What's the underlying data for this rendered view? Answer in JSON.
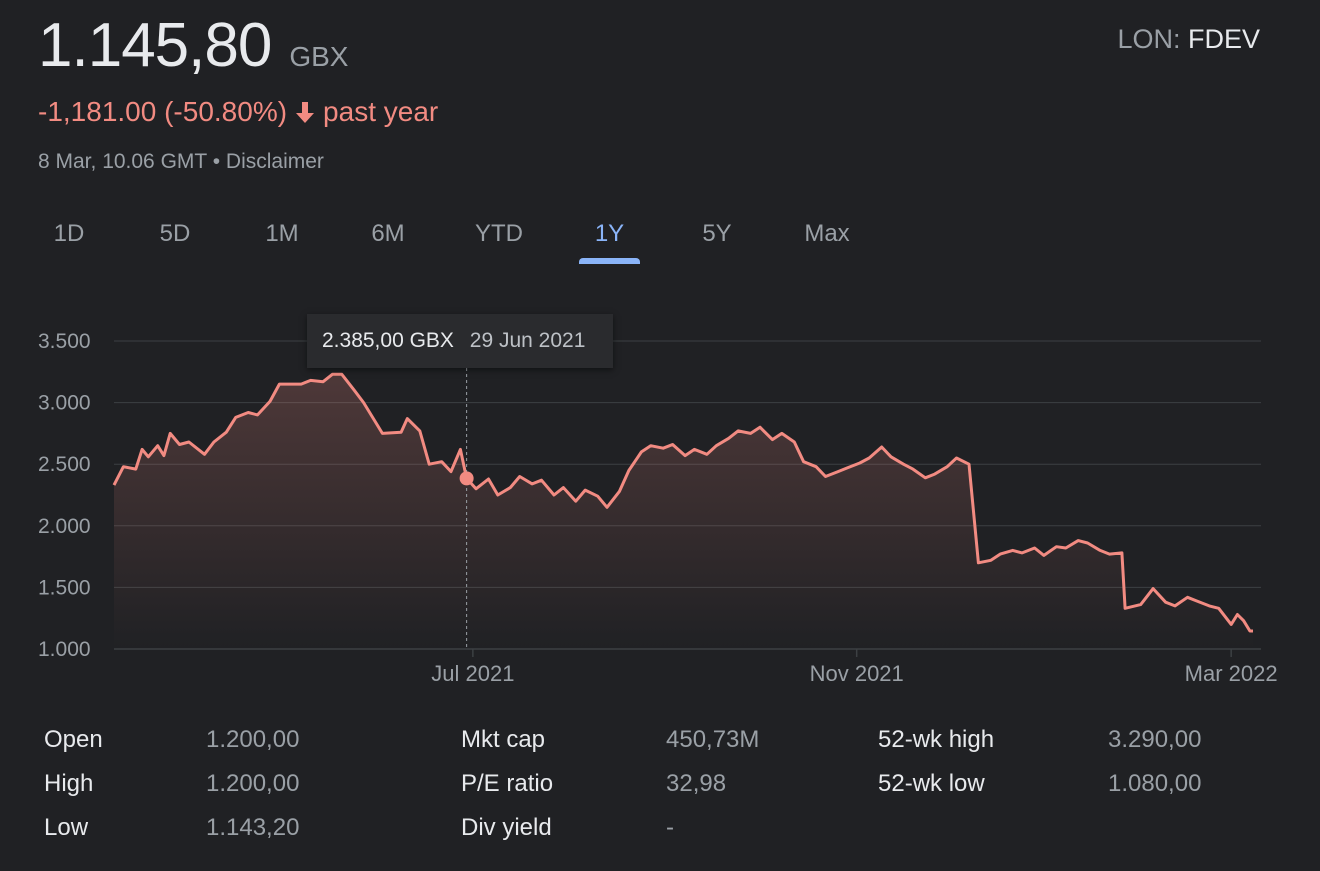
{
  "header": {
    "price": "1.145,80",
    "currency": "GBX",
    "exchange": "LON:",
    "symbol": "FDEV",
    "change": "-1,181.00 (-50.80%)",
    "period": "past year",
    "timestamp": "8 Mar, 10.06 GMT",
    "separator": "•",
    "disclaimer": "Disclaimer"
  },
  "colors": {
    "line": "#f28b82",
    "accent": "#8ab4f8",
    "grid": "#3c4043",
    "text_muted": "#9aa0a6"
  },
  "tabs": [
    {
      "label": "1D",
      "active": false
    },
    {
      "label": "5D",
      "active": false
    },
    {
      "label": "1M",
      "active": false
    },
    {
      "label": "6M",
      "active": false
    },
    {
      "label": "YTD",
      "active": false
    },
    {
      "label": "1Y",
      "active": true
    },
    {
      "label": "5Y",
      "active": false
    },
    {
      "label": "Max",
      "active": false
    }
  ],
  "tooltip": {
    "price": "2.385,00 GBX",
    "date": "29 Jun 2021"
  },
  "chart_data": {
    "type": "area",
    "x_range": [
      "2021-03-08",
      "2022-03-08"
    ],
    "ylim": [
      1000,
      3500
    ],
    "y_ticks": [
      {
        "value": 3500,
        "label": "3.500"
      },
      {
        "value": 3000,
        "label": "3.000"
      },
      {
        "value": 2500,
        "label": "2.500"
      },
      {
        "value": 2000,
        "label": "2.000"
      },
      {
        "value": 1500,
        "label": "1.500"
      },
      {
        "value": 1000,
        "label": "1.000"
      }
    ],
    "x_ticks": [
      {
        "date": "2021-07-01",
        "label": "Jul 2021"
      },
      {
        "date": "2021-11-01",
        "label": "Nov 2021"
      },
      {
        "date": "2022-03-01",
        "label": "Mar 2022"
      }
    ],
    "grid": true,
    "highlight": {
      "date": "2021-06-29",
      "value": 2385
    },
    "series": [
      {
        "points": [
          [
            "2021-03-08",
            2330
          ],
          [
            "2021-03-11",
            2480
          ],
          [
            "2021-03-15",
            2460
          ],
          [
            "2021-03-17",
            2620
          ],
          [
            "2021-03-19",
            2560
          ],
          [
            "2021-03-22",
            2650
          ],
          [
            "2021-03-24",
            2570
          ],
          [
            "2021-03-26",
            2750
          ],
          [
            "2021-03-29",
            2660
          ],
          [
            "2021-04-01",
            2680
          ],
          [
            "2021-04-06",
            2580
          ],
          [
            "2021-04-09",
            2680
          ],
          [
            "2021-04-13",
            2760
          ],
          [
            "2021-04-16",
            2880
          ],
          [
            "2021-04-20",
            2920
          ],
          [
            "2021-04-23",
            2900
          ],
          [
            "2021-04-27",
            3010
          ],
          [
            "2021-04-30",
            3150
          ],
          [
            "2021-05-07",
            3150
          ],
          [
            "2021-05-10",
            3180
          ],
          [
            "2021-05-14",
            3170
          ],
          [
            "2021-05-17",
            3230
          ],
          [
            "2021-05-20",
            3230
          ],
          [
            "2021-05-24",
            3100
          ],
          [
            "2021-05-27",
            3000
          ],
          [
            "2021-06-02",
            2750
          ],
          [
            "2021-06-08",
            2760
          ],
          [
            "2021-06-10",
            2870
          ],
          [
            "2021-06-14",
            2770
          ],
          [
            "2021-06-17",
            2500
          ],
          [
            "2021-06-21",
            2520
          ],
          [
            "2021-06-24",
            2440
          ],
          [
            "2021-06-27",
            2620
          ],
          [
            "2021-06-29",
            2385
          ],
          [
            "2021-07-02",
            2300
          ],
          [
            "2021-07-06",
            2380
          ],
          [
            "2021-07-09",
            2250
          ],
          [
            "2021-07-13",
            2310
          ],
          [
            "2021-07-16",
            2400
          ],
          [
            "2021-07-20",
            2340
          ],
          [
            "2021-07-23",
            2370
          ],
          [
            "2021-07-27",
            2250
          ],
          [
            "2021-07-30",
            2310
          ],
          [
            "2021-08-03",
            2200
          ],
          [
            "2021-08-06",
            2290
          ],
          [
            "2021-08-10",
            2240
          ],
          [
            "2021-08-13",
            2150
          ],
          [
            "2021-08-17",
            2280
          ],
          [
            "2021-08-20",
            2450
          ],
          [
            "2021-08-24",
            2600
          ],
          [
            "2021-08-27",
            2650
          ],
          [
            "2021-08-31",
            2630
          ],
          [
            "2021-09-03",
            2660
          ],
          [
            "2021-09-07",
            2570
          ],
          [
            "2021-09-10",
            2620
          ],
          [
            "2021-09-14",
            2580
          ],
          [
            "2021-09-17",
            2650
          ],
          [
            "2021-09-21",
            2710
          ],
          [
            "2021-09-24",
            2770
          ],
          [
            "2021-09-28",
            2750
          ],
          [
            "2021-10-01",
            2800
          ],
          [
            "2021-10-05",
            2700
          ],
          [
            "2021-10-08",
            2750
          ],
          [
            "2021-10-12",
            2680
          ],
          [
            "2021-10-15",
            2520
          ],
          [
            "2021-10-19",
            2480
          ],
          [
            "2021-10-22",
            2400
          ],
          [
            "2021-10-26",
            2440
          ],
          [
            "2021-10-29",
            2470
          ],
          [
            "2021-11-02",
            2510
          ],
          [
            "2021-11-05",
            2550
          ],
          [
            "2021-11-09",
            2640
          ],
          [
            "2021-11-12",
            2560
          ],
          [
            "2021-11-16",
            2500
          ],
          [
            "2021-11-19",
            2460
          ],
          [
            "2021-11-23",
            2390
          ],
          [
            "2021-11-26",
            2420
          ],
          [
            "2021-11-30",
            2480
          ],
          [
            "2021-12-03",
            2550
          ],
          [
            "2021-12-07",
            2500
          ],
          [
            "2021-12-10",
            1700
          ],
          [
            "2021-12-14",
            1720
          ],
          [
            "2021-12-17",
            1770
          ],
          [
            "2021-12-21",
            1800
          ],
          [
            "2021-12-24",
            1780
          ],
          [
            "2021-12-28",
            1820
          ],
          [
            "2021-12-31",
            1760
          ],
          [
            "2022-01-04",
            1830
          ],
          [
            "2022-01-07",
            1820
          ],
          [
            "2022-01-11",
            1880
          ],
          [
            "2022-01-14",
            1860
          ],
          [
            "2022-01-18",
            1800
          ],
          [
            "2022-01-21",
            1770
          ],
          [
            "2022-01-25",
            1780
          ],
          [
            "2022-01-26",
            1330
          ],
          [
            "2022-01-31",
            1360
          ],
          [
            "2022-02-04",
            1490
          ],
          [
            "2022-02-08",
            1380
          ],
          [
            "2022-02-11",
            1350
          ],
          [
            "2022-02-15",
            1420
          ],
          [
            "2022-02-18",
            1390
          ],
          [
            "2022-02-22",
            1350
          ],
          [
            "2022-02-25",
            1330
          ],
          [
            "2022-03-01",
            1200
          ],
          [
            "2022-03-03",
            1280
          ],
          [
            "2022-03-05",
            1230
          ],
          [
            "2022-03-07",
            1146
          ],
          [
            "2022-03-08",
            1146
          ]
        ]
      }
    ]
  },
  "stats": [
    {
      "label": "Open",
      "value": "1.200,00"
    },
    {
      "label": "High",
      "value": "1.200,00"
    },
    {
      "label": "Low",
      "value": "1.143,20"
    },
    {
      "label": "Mkt cap",
      "value": "450,73M"
    },
    {
      "label": "P/E ratio",
      "value": "32,98"
    },
    {
      "label": "Div yield",
      "value": "-"
    },
    {
      "label": "52-wk high",
      "value": "3.290,00"
    },
    {
      "label": "52-wk low",
      "value": "1.080,00"
    }
  ]
}
